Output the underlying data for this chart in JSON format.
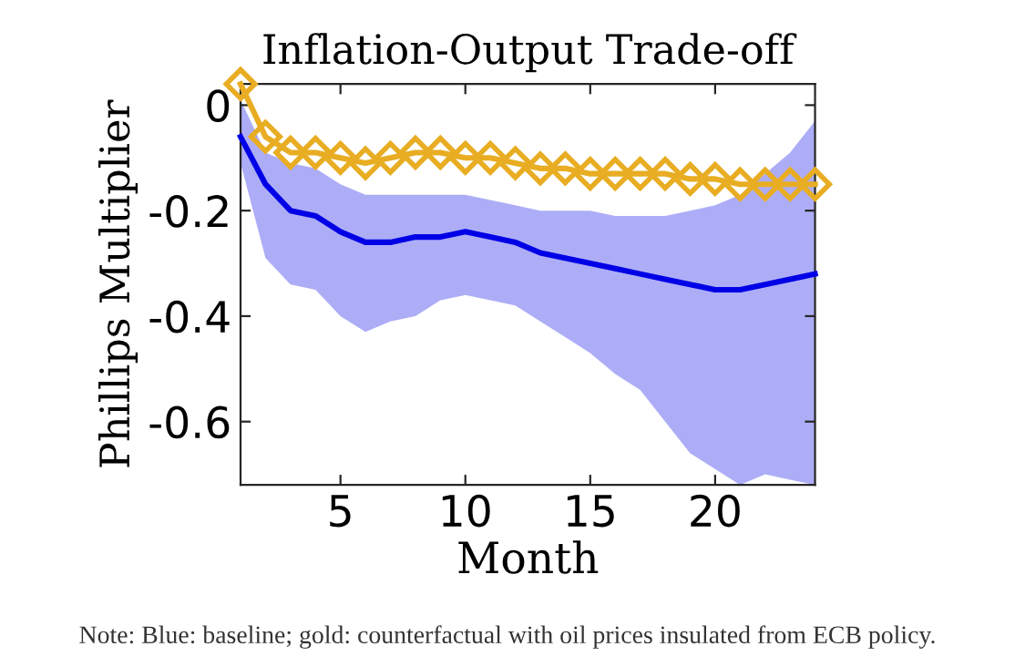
{
  "chart_data": {
    "type": "line",
    "title": "Inflation-Output Trade-off",
    "xlabel": "Month",
    "ylabel": "Phillips Multiplier",
    "annotations": [
      "Note: Blue: baseline; gold: counterfactual with oil prices insulated from ECB policy."
    ],
    "x": [
      1,
      2,
      3,
      4,
      5,
      6,
      7,
      8,
      9,
      10,
      11,
      12,
      13,
      14,
      15,
      16,
      17,
      18,
      19,
      20,
      21,
      22,
      23,
      24
    ],
    "series": [
      {
        "color": "#0000e6",
        "marker": "none",
        "values": [
          -0.06,
          -0.15,
          -0.2,
          -0.21,
          -0.24,
          -0.26,
          -0.26,
          -0.25,
          -0.25,
          -0.24,
          -0.25,
          -0.26,
          -0.28,
          -0.29,
          -0.3,
          -0.31,
          -0.32,
          -0.33,
          -0.34,
          -0.35,
          -0.35,
          -0.34,
          -0.33,
          -0.32
        ],
        "lower": [
          -0.11,
          -0.29,
          -0.34,
          -0.35,
          -0.4,
          -0.43,
          -0.41,
          -0.4,
          -0.37,
          -0.36,
          -0.37,
          -0.38,
          -0.41,
          -0.44,
          -0.47,
          -0.51,
          -0.54,
          -0.6,
          -0.66,
          -0.69,
          -0.72,
          -0.7,
          -0.71,
          -0.72
        ],
        "upper": [
          0.01,
          -0.09,
          -0.11,
          -0.12,
          -0.15,
          -0.17,
          -0.17,
          -0.17,
          -0.17,
          -0.17,
          -0.18,
          -0.19,
          -0.2,
          -0.2,
          -0.2,
          -0.21,
          -0.21,
          -0.21,
          -0.2,
          -0.19,
          -0.17,
          -0.13,
          -0.09,
          -0.03
        ]
      },
      {
        "color": "#e8ad22",
        "marker": "diamond",
        "values": [
          0.04,
          -0.06,
          -0.09,
          -0.09,
          -0.1,
          -0.11,
          -0.1,
          -0.09,
          -0.09,
          -0.1,
          -0.1,
          -0.11,
          -0.12,
          -0.12,
          -0.13,
          -0.13,
          -0.13,
          -0.13,
          -0.14,
          -0.14,
          -0.15,
          -0.15,
          -0.15,
          -0.15
        ]
      }
    ],
    "xlim": [
      1,
      24
    ],
    "xticks": [
      5,
      10,
      15,
      20
    ],
    "ylim": [
      -0.72,
      0.04
    ],
    "yticks": [
      {
        "value": 0,
        "label": "0"
      },
      {
        "value": -0.2,
        "label": "-0.2"
      },
      {
        "value": -0.4,
        "label": "-0.4"
      },
      {
        "value": -0.6,
        "label": "-0.6"
      }
    ],
    "grid": false,
    "legend": false,
    "line_style": "solid"
  }
}
